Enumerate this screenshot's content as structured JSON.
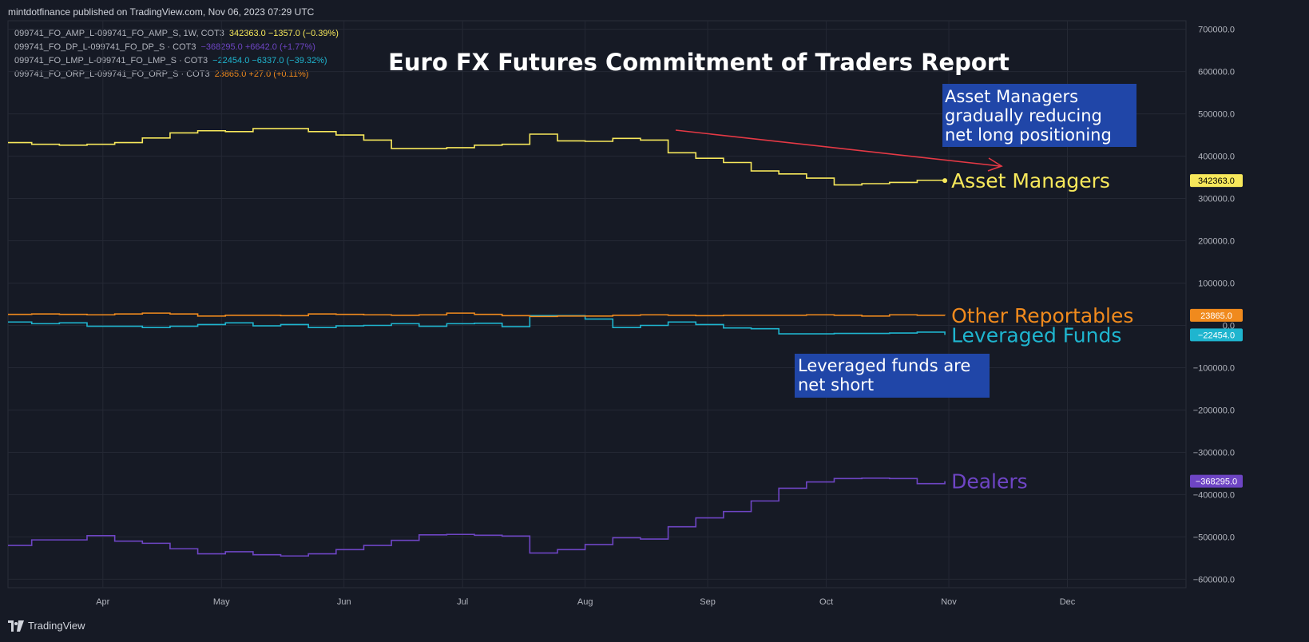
{
  "header": {
    "publisher_line": "mintdotfinance published on TradingView.com, Nov 06, 2023 07:29 UTC"
  },
  "legend": [
    {
      "name": "099741_FO_AMP_L-099741_FO_AMP_S, 1W, COT3",
      "values": "342363.0  −1357.0 (−0.39%)",
      "color": "#f7e85b"
    },
    {
      "name": "099741_FO_DP_L-099741_FO_DP_S · COT3",
      "values": "−368295.0  +6642.0 (+1.77%)",
      "color": "#6e45c4"
    },
    {
      "name": "099741_FO_LMP_L-099741_FO_LMP_S · COT3",
      "values": "−22454.0  −6337.0 (−39.32%)",
      "color": "#1fb5cf"
    },
    {
      "name": "099741_FO_ORP_L-099741_FO_ORP_S · COT3",
      "values": "23865.0  +27.0 (+0.11%)",
      "color": "#f08a1d"
    }
  ],
  "footer": {
    "brand": "TradingView"
  },
  "colors": {
    "background": "#161a25",
    "grid": "#242834",
    "axis_text": "#b2b5be",
    "asset_managers": "#f7e85b",
    "dealers": "#6e45c4",
    "leveraged_funds": "#1fb5cf",
    "other_reportables": "#f08a1d",
    "annotation_box": "#2046a8",
    "arrow": "#e53945"
  },
  "chart_data": {
    "type": "line",
    "step": true,
    "title": "Euro FX Futures Commitment of Traders Report",
    "x_axis": {
      "type": "time",
      "range": [
        "2023-03-08",
        "2023-12-31"
      ],
      "tick_labels": [
        "Apr",
        "May",
        "Jun",
        "Jul",
        "Aug",
        "Sep",
        "Oct",
        "Nov",
        "Dec"
      ],
      "tick_dates": [
        "2023-04-01",
        "2023-05-01",
        "2023-06-01",
        "2023-07-01",
        "2023-08-01",
        "2023-09-01",
        "2023-10-01",
        "2023-11-01",
        "2023-12-01"
      ]
    },
    "y_axis": {
      "range": [
        -620000,
        720000
      ],
      "ticks": [
        700000,
        600000,
        500000,
        400000,
        300000,
        200000,
        100000,
        0,
        -100000,
        -200000,
        -300000,
        -400000,
        -500000,
        -600000
      ],
      "tick_labels": [
        "700000.0",
        "600000.0",
        "500000.0",
        "400000.0",
        "300000.0",
        "200000.0",
        "100000.0",
        "0.0",
        "−100000.0",
        "−200000.0",
        "−300000.0",
        "−400000.0",
        "−500000.0",
        "−600000.0"
      ],
      "position": "right"
    },
    "grid": true,
    "x": [
      "2023-03-07",
      "2023-03-14",
      "2023-03-21",
      "2023-03-28",
      "2023-04-04",
      "2023-04-11",
      "2023-04-18",
      "2023-04-25",
      "2023-05-02",
      "2023-05-09",
      "2023-05-16",
      "2023-05-23",
      "2023-05-30",
      "2023-06-06",
      "2023-06-13",
      "2023-06-20",
      "2023-06-27",
      "2023-07-04",
      "2023-07-11",
      "2023-07-18",
      "2023-07-25",
      "2023-08-01",
      "2023-08-08",
      "2023-08-15",
      "2023-08-22",
      "2023-08-29",
      "2023-09-05",
      "2023-09-12",
      "2023-09-19",
      "2023-09-26",
      "2023-10-03",
      "2023-10-10",
      "2023-10-17",
      "2023-10-24",
      "2023-10-31"
    ],
    "series": [
      {
        "name": "Asset Managers",
        "key": "asset_managers",
        "last_value_label": "342363.0",
        "values": [
          432000,
          428000,
          426000,
          428000,
          432000,
          443000,
          455000,
          460000,
          458000,
          465000,
          465000,
          458000,
          450000,
          438000,
          418000,
          418000,
          420000,
          426000,
          428000,
          452000,
          436000,
          435000,
          442000,
          438000,
          408000,
          395000,
          385000,
          365000,
          358000,
          348000,
          332000,
          335000,
          338000,
          343000,
          342363
        ]
      },
      {
        "name": "Dealers",
        "key": "dealers",
        "last_value_label": "−368295.0",
        "values": [
          -520000,
          -507000,
          -507000,
          -497000,
          -510000,
          -515000,
          -528000,
          -540000,
          -535000,
          -542000,
          -545000,
          -540000,
          -530000,
          -520000,
          -508000,
          -495000,
          -494000,
          -496000,
          -498000,
          -538000,
          -530000,
          -518000,
          -502000,
          -505000,
          -476000,
          -455000,
          -440000,
          -415000,
          -385000,
          -370000,
          -362000,
          -361000,
          -362000,
          -374000,
          -368295
        ]
      },
      {
        "name": "Leveraged Funds",
        "key": "leveraged_funds",
        "last_value_label": "−22454.0",
        "values": [
          8000,
          4000,
          6000,
          -2000,
          -2000,
          -5000,
          -2000,
          2000,
          6000,
          -1000,
          2000,
          -5000,
          -1000,
          0,
          4000,
          -2000,
          4000,
          5000,
          -3000,
          23000,
          23000,
          15000,
          -5000,
          0,
          8000,
          2000,
          -6000,
          -8000,
          -20000,
          -20000,
          -19000,
          -19000,
          -18000,
          -16000,
          -22454
        ]
      },
      {
        "name": "Other Reportables",
        "key": "other_reportables",
        "last_value_label": "23865.0",
        "values": [
          26000,
          27000,
          26000,
          25000,
          27000,
          29000,
          27000,
          22000,
          24000,
          24000,
          23000,
          27000,
          26000,
          25000,
          24000,
          25000,
          29000,
          26000,
          23000,
          21000,
          22000,
          22000,
          24000,
          25000,
          24000,
          23000,
          24000,
          24000,
          24000,
          25000,
          24000,
          22000,
          25000,
          24000,
          23865
        ]
      }
    ],
    "annotations": [
      {
        "key": "asset_managers_note",
        "text_lines": [
          "Asset Managers",
          "gradually reducing",
          "net long positioning"
        ]
      },
      {
        "key": "leveraged_funds_note",
        "text_lines": [
          "Leveraged funds are",
          "net short"
        ]
      }
    ]
  }
}
